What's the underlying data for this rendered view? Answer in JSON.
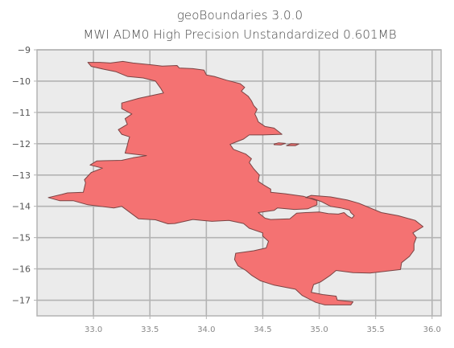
{
  "figure": {
    "title_line1": "geoBoundaries 3.0.0",
    "title_line2": "MWI ADM0 High Precision Unstandardized 0.601MB"
  },
  "chart_data": {
    "type": "map",
    "title": "geoBoundaries 3.0.0\nMWI ADM0 High Precision Unstandardized 0.601MB",
    "xlim": [
      32.5,
      36.08
    ],
    "ylim": [
      -17.5,
      -9.0
    ],
    "x_ticks": [
      33.0,
      33.5,
      34.0,
      34.5,
      35.0,
      35.5,
      36.0
    ],
    "x_tick_labels": [
      "33.0",
      "33.5",
      "34.0",
      "34.5",
      "35.0",
      "35.5",
      "36.0"
    ],
    "y_ticks": [
      -9,
      -10,
      -11,
      -12,
      -13,
      -14,
      -15,
      -16,
      -17
    ],
    "y_tick_labels": [
      "−9",
      "−10",
      "−11",
      "−12",
      "−13",
      "−14",
      "−15",
      "−16",
      "−17"
    ],
    "grid": true,
    "background_color": "#ebebeb",
    "grid_color": "#b3b3b3",
    "fill_color": "#f47272",
    "edge_color": "#7a4444",
    "shapes": [
      {
        "name": "",
        "coordinates": [
          [
            33.26,
            -9.37
          ],
          [
            33.35,
            -9.42
          ],
          [
            33.52,
            -9.48
          ],
          [
            33.61,
            -9.52
          ],
          [
            33.74,
            -9.5
          ],
          [
            33.76,
            -9.58
          ],
          [
            33.88,
            -9.6
          ],
          [
            33.98,
            -9.65
          ],
          [
            34.0,
            -9.8
          ],
          [
            34.07,
            -9.85
          ],
          [
            34.18,
            -9.97
          ],
          [
            34.3,
            -10.08
          ],
          [
            34.34,
            -10.2
          ],
          [
            34.31,
            -10.32
          ],
          [
            34.37,
            -10.48
          ],
          [
            34.4,
            -10.63
          ],
          [
            34.42,
            -10.78
          ],
          [
            34.45,
            -10.9
          ],
          [
            34.43,
            -11.05
          ],
          [
            34.45,
            -11.2
          ],
          [
            34.46,
            -11.3
          ],
          [
            34.52,
            -11.45
          ],
          [
            34.6,
            -11.5
          ],
          [
            34.67,
            -11.7
          ],
          [
            34.5,
            -11.72
          ],
          [
            34.38,
            -11.72
          ],
          [
            34.33,
            -11.85
          ],
          [
            34.21,
            -12.02
          ],
          [
            34.24,
            -12.18
          ],
          [
            34.35,
            -12.33
          ],
          [
            34.4,
            -12.48
          ],
          [
            34.38,
            -12.6
          ],
          [
            34.42,
            -12.8
          ],
          [
            34.47,
            -13.0
          ],
          [
            34.46,
            -13.2
          ],
          [
            34.5,
            -13.3
          ],
          [
            34.57,
            -13.45
          ],
          [
            34.57,
            -13.55
          ],
          [
            34.7,
            -13.6
          ],
          [
            34.86,
            -13.68
          ],
          [
            34.98,
            -13.82
          ],
          [
            34.98,
            -13.95
          ],
          [
            34.9,
            -14.08
          ],
          [
            34.78,
            -14.1
          ],
          [
            34.63,
            -14.05
          ],
          [
            34.6,
            -14.13
          ],
          [
            34.46,
            -14.2
          ],
          [
            34.52,
            -14.38
          ],
          [
            34.57,
            -14.42
          ],
          [
            34.74,
            -14.4
          ],
          [
            34.8,
            -14.22
          ],
          [
            34.88,
            -14.2
          ],
          [
            35.0,
            -14.18
          ],
          [
            35.08,
            -14.23
          ],
          [
            35.17,
            -14.25
          ],
          [
            35.22,
            -14.2
          ],
          [
            35.25,
            -14.3
          ],
          [
            35.29,
            -14.38
          ],
          [
            35.31,
            -14.3
          ],
          [
            35.28,
            -14.2
          ],
          [
            35.27,
            -14.12
          ],
          [
            35.19,
            -14.05
          ],
          [
            35.1,
            -14.0
          ],
          [
            35.02,
            -13.85
          ],
          [
            34.94,
            -13.75
          ],
          [
            34.88,
            -13.72
          ],
          [
            34.93,
            -13.65
          ],
          [
            35.1,
            -13.7
          ],
          [
            35.25,
            -13.8
          ],
          [
            35.35,
            -13.9
          ],
          [
            35.45,
            -14.05
          ],
          [
            35.55,
            -14.2
          ],
          [
            35.7,
            -14.3
          ],
          [
            35.85,
            -14.45
          ],
          [
            35.92,
            -14.65
          ],
          [
            35.83,
            -14.85
          ],
          [
            35.86,
            -15.0
          ],
          [
            35.84,
            -15.2
          ],
          [
            35.84,
            -15.4
          ],
          [
            35.8,
            -15.6
          ],
          [
            35.73,
            -15.8
          ],
          [
            35.72,
            -16.02
          ],
          [
            35.45,
            -16.13
          ],
          [
            35.3,
            -16.12
          ],
          [
            35.15,
            -16.05
          ],
          [
            35.1,
            -16.2
          ],
          [
            35.01,
            -16.42
          ],
          [
            34.95,
            -16.5
          ],
          [
            34.93,
            -16.75
          ],
          [
            35.03,
            -16.82
          ],
          [
            35.15,
            -16.87
          ],
          [
            35.16,
            -17.0
          ],
          [
            35.3,
            -17.05
          ],
          [
            35.28,
            -17.15
          ],
          [
            35.05,
            -17.15
          ],
          [
            34.97,
            -17.07
          ],
          [
            34.85,
            -16.85
          ],
          [
            34.79,
            -16.65
          ],
          [
            34.6,
            -16.52
          ],
          [
            34.48,
            -16.38
          ],
          [
            34.4,
            -16.2
          ],
          [
            34.35,
            -16.05
          ],
          [
            34.28,
            -15.9
          ],
          [
            34.25,
            -15.7
          ],
          [
            34.26,
            -15.5
          ],
          [
            34.42,
            -15.42
          ],
          [
            34.53,
            -15.33
          ],
          [
            34.55,
            -15.12
          ],
          [
            34.5,
            -14.95
          ],
          [
            34.5,
            -14.85
          ],
          [
            34.38,
            -14.7
          ],
          [
            34.33,
            -14.55
          ],
          [
            34.2,
            -14.45
          ],
          [
            34.05,
            -14.48
          ],
          [
            33.88,
            -14.42
          ],
          [
            33.72,
            -14.55
          ],
          [
            33.66,
            -14.56
          ],
          [
            33.55,
            -14.43
          ],
          [
            33.4,
            -14.4
          ],
          [
            33.25,
            -14.0
          ],
          [
            33.18,
            -14.05
          ],
          [
            33.06,
            -14.0
          ],
          [
            32.95,
            -13.95
          ],
          [
            32.82,
            -13.82
          ],
          [
            32.7,
            -13.82
          ],
          [
            32.6,
            -13.72
          ],
          [
            32.72,
            -13.62
          ],
          [
            32.77,
            -13.57
          ],
          [
            32.91,
            -13.55
          ],
          [
            32.93,
            -13.25
          ],
          [
            32.92,
            -13.15
          ],
          [
            32.98,
            -12.92
          ],
          [
            33.08,
            -12.78
          ],
          [
            32.97,
            -12.68
          ],
          [
            33.03,
            -12.55
          ],
          [
            33.25,
            -12.53
          ],
          [
            33.35,
            -12.45
          ],
          [
            33.47,
            -12.38
          ],
          [
            33.28,
            -12.3
          ],
          [
            33.3,
            -12.05
          ],
          [
            33.31,
            -11.9
          ],
          [
            33.32,
            -11.78
          ],
          [
            33.25,
            -11.7
          ],
          [
            33.22,
            -11.55
          ],
          [
            33.3,
            -11.38
          ],
          [
            33.28,
            -11.2
          ],
          [
            33.34,
            -11.05
          ],
          [
            33.25,
            -10.88
          ],
          [
            33.25,
            -10.7
          ],
          [
            33.4,
            -10.55
          ],
          [
            33.62,
            -10.38
          ],
          [
            33.6,
            -10.25
          ],
          [
            33.55,
            -10.0
          ],
          [
            33.44,
            -9.9
          ],
          [
            33.3,
            -9.85
          ],
          [
            33.2,
            -9.7
          ],
          [
            33.09,
            -9.62
          ],
          [
            32.98,
            -9.53
          ],
          [
            32.95,
            -9.4
          ],
          [
            33.06,
            -9.4
          ],
          [
            33.15,
            -9.42
          ],
          [
            33.26,
            -9.37
          ]
        ]
      },
      {
        "name": "",
        "coordinates": [
          [
            34.6,
            -12.01
          ],
          [
            34.64,
            -11.97
          ],
          [
            34.7,
            -11.99
          ],
          [
            34.66,
            -12.04
          ],
          [
            34.6,
            -12.03
          ],
          [
            34.6,
            -12.01
          ]
        ]
      },
      {
        "name": "",
        "coordinates": [
          [
            34.71,
            -12.06
          ],
          [
            34.75,
            -12.0
          ],
          [
            34.82,
            -12.01
          ],
          [
            34.79,
            -12.06
          ],
          [
            34.71,
            -12.06
          ]
        ]
      }
    ]
  }
}
